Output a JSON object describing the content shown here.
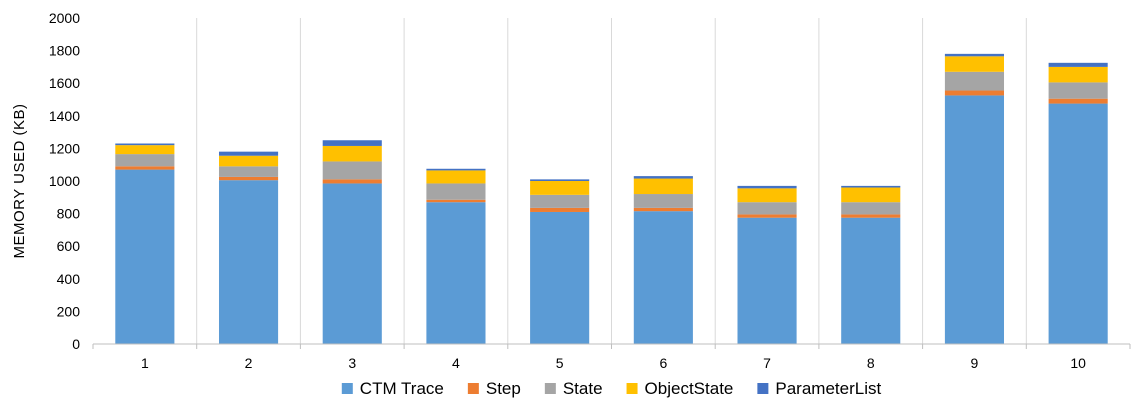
{
  "chart_data": {
    "type": "bar",
    "stacked": true,
    "title": "",
    "xlabel": "",
    "ylabel": "MEMORY USED (KB)",
    "ylim": [
      0,
      2000
    ],
    "yticks": [
      0,
      200,
      400,
      600,
      800,
      1000,
      1200,
      1400,
      1600,
      1800,
      2000
    ],
    "categories": [
      "1",
      "2",
      "3",
      "4",
      "5",
      "6",
      "7",
      "8",
      "9",
      "10"
    ],
    "grid": {
      "vertical_separators": true,
      "horizontal": false
    },
    "legend_position": "bottom",
    "series": [
      {
        "name": "CTM Trace",
        "color": "#5B9BD5",
        "values": [
          1070,
          1005,
          985,
          870,
          810,
          815,
          775,
          775,
          1525,
          1475
        ]
      },
      {
        "name": "Step",
        "color": "#ED7D31",
        "values": [
          20,
          20,
          25,
          15,
          25,
          20,
          20,
          20,
          30,
          30
        ]
      },
      {
        "name": "State",
        "color": "#A5A5A5",
        "values": [
          75,
          65,
          110,
          100,
          80,
          85,
          75,
          75,
          115,
          100
        ]
      },
      {
        "name": "ObjectState",
        "color": "#FFC000",
        "values": [
          55,
          65,
          95,
          80,
          85,
          95,
          85,
          90,
          95,
          95
        ]
      },
      {
        "name": "ParameterList",
        "color": "#4472C4",
        "values": [
          10,
          25,
          35,
          10,
          10,
          15,
          15,
          10,
          15,
          25
        ]
      }
    ]
  }
}
